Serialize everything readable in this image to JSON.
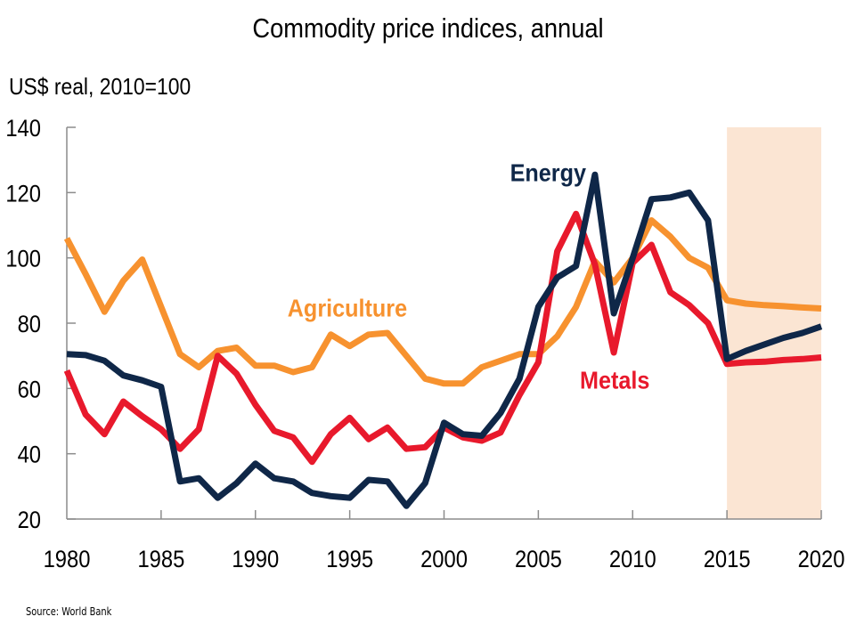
{
  "chart_data": {
    "type": "line",
    "title": "Commodity price indices, annual",
    "ylabel": "US$ real, 2010=100",
    "xlabel": "",
    "xlim": [
      1980,
      2020
    ],
    "ylim": [
      20,
      140
    ],
    "yticks": [
      20,
      40,
      60,
      80,
      100,
      120,
      140
    ],
    "xticks": [
      1980,
      1985,
      1990,
      1995,
      2000,
      2005,
      2010,
      2015,
      2020
    ],
    "grid": false,
    "legend": "inline labels",
    "shaded_region": {
      "from": 2015,
      "to": 2020,
      "color": "#fbe5d3",
      "meaning": "forecast"
    },
    "x": [
      1980,
      1981,
      1982,
      1983,
      1984,
      1985,
      1986,
      1987,
      1988,
      1989,
      1990,
      1991,
      1992,
      1993,
      1994,
      1995,
      1996,
      1997,
      1998,
      1999,
      2000,
      2001,
      2002,
      2003,
      2004,
      2005,
      2006,
      2007,
      2008,
      2009,
      2010,
      2011,
      2012,
      2013,
      2014,
      2015,
      2016,
      2017,
      2018,
      2019,
      2020
    ],
    "series": [
      {
        "name": "Agriculture",
        "color": "#f7922f",
        "label_pos": [
          1991.7,
          82
        ],
        "values": [
          106,
          95,
          83.5,
          93,
          99.5,
          85,
          70.5,
          66.5,
          71.5,
          72.5,
          67,
          67,
          65,
          66.5,
          76.5,
          73,
          76.5,
          77,
          70,
          63,
          61.5,
          61.5,
          66.5,
          68.5,
          70.5,
          70.5,
          76,
          85,
          99,
          92.5,
          100,
          111.5,
          106.5,
          100,
          97,
          87,
          86,
          85.5,
          85.2,
          84.8,
          84.5
        ]
      },
      {
        "name": "Metals",
        "color": "#e8192c",
        "label_pos": [
          2007.2,
          60
        ],
        "values": [
          65.5,
          52,
          46,
          56,
          51.5,
          47.5,
          41.5,
          47.5,
          70,
          64.5,
          55,
          47,
          45,
          37.5,
          46,
          51,
          44.5,
          48,
          41.5,
          42,
          48,
          45,
          44,
          46.5,
          58,
          68,
          102,
          113.5,
          98,
          71,
          98.5,
          104,
          89.5,
          85.5,
          80,
          67.5,
          68,
          68.2,
          68.7,
          69,
          69.5
        ]
      },
      {
        "name": "Energy",
        "color": "#0f2748",
        "label_pos": [
          2003.5,
          123.5
        ],
        "values": [
          70.5,
          70.2,
          68.5,
          64,
          62.5,
          60.5,
          31.5,
          32.5,
          26.5,
          31,
          37,
          32.5,
          31.5,
          28,
          27,
          26.5,
          32,
          31.5,
          24,
          31,
          49.5,
          46,
          45.5,
          52.5,
          63,
          85,
          94,
          97.5,
          125.5,
          83,
          100,
          118,
          118.5,
          120,
          111.5,
          69,
          71.5,
          73.5,
          75.5,
          77,
          79
        ]
      }
    ]
  },
  "footer": {
    "source": "Source: World Bank"
  }
}
